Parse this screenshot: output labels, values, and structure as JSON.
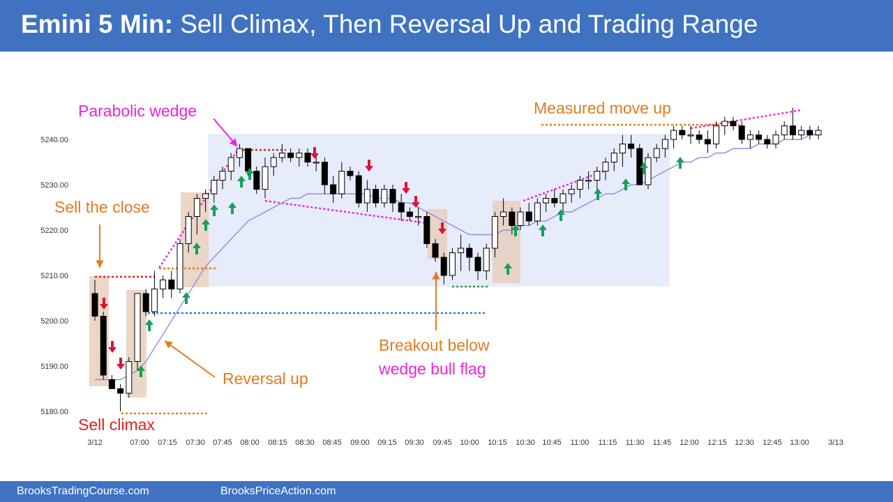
{
  "header": {
    "title_bold": "Emini 5 Min:",
    "title_rest": "Sell Climax, Then Reversal Up and Trading Range"
  },
  "footer": {
    "left": "BrooksTradingCourse.com",
    "right": "BrooksPriceAction.com"
  },
  "colors": {
    "header_bg": "#3f73c2",
    "bull_body": "#ffffff",
    "bear_body": "#000000",
    "ema": "#8a8ee8",
    "range_box": "#dfe6f8",
    "highlight": "#e8cfbd",
    "annotation_orange": "#e07b20",
    "annotation_magenta": "#ee22dd",
    "annotation_red": "#e02020",
    "arrow_up": "#16a05a",
    "arrow_down": "#e0113a"
  },
  "annotations": {
    "parabolic_wedge": "Parabolic wedge",
    "sell_the_close": "Sell the close",
    "sell_climax": "Sell climax",
    "reversal_up": "Reversal up",
    "breakout_line1": "Breakout below",
    "breakout_line2": "wedge bull flag",
    "measured_move": "Measured move up"
  },
  "chart_data": {
    "type": "candlestick",
    "title": "Emini 5 Min: Sell Climax, Then Reversal Up and Trading Range",
    "ylim": [
      5177,
      5252
    ],
    "y_ticks": [
      5180,
      5190,
      5200,
      5210,
      5220,
      5230,
      5240
    ],
    "y_tick_labels": [
      "5180.00",
      "5190.00",
      "5200.00",
      "5210.00",
      "5220.00",
      "5230.00",
      "5240.00"
    ],
    "x_ticks": [
      "3/12",
      "07:00",
      "07:15",
      "07:30",
      "07:45",
      "08:00",
      "08:15",
      "08:30",
      "08:45",
      "09:00",
      "09:15",
      "09:30",
      "09:45",
      "10:00",
      "10:15",
      "10:30",
      "10:45",
      "11:00",
      "11:15",
      "11:30",
      "11:45",
      "12:00",
      "12:15",
      "12:30",
      "12:45",
      "13:00",
      "3/13"
    ],
    "bars": [
      {
        "o": 5206,
        "h": 5209,
        "l": 5200,
        "c": 5201
      },
      {
        "o": 5201,
        "h": 5202,
        "l": 5187,
        "c": 5188
      },
      {
        "o": 5187,
        "h": 5188,
        "l": 5185,
        "c": 5185
      },
      {
        "o": 5185,
        "h": 5186,
        "l": 5180,
        "c": 5184
      },
      {
        "o": 5184,
        "h": 5192,
        "l": 5183,
        "c": 5191
      },
      {
        "o": 5191,
        "h": 5206,
        "l": 5189,
        "c": 5206
      },
      {
        "o": 5206,
        "h": 5207,
        "l": 5201,
        "c": 5202
      },
      {
        "o": 5202,
        "h": 5211,
        "l": 5201,
        "c": 5207
      },
      {
        "o": 5207,
        "h": 5210,
        "l": 5205,
        "c": 5209
      },
      {
        "o": 5209,
        "h": 5211,
        "l": 5205,
        "c": 5207
      },
      {
        "o": 5207,
        "h": 5218,
        "l": 5206,
        "c": 5217
      },
      {
        "o": 5217,
        "h": 5224,
        "l": 5215,
        "c": 5223
      },
      {
        "o": 5223,
        "h": 5228,
        "l": 5219,
        "c": 5227
      },
      {
        "o": 5227,
        "h": 5229,
        "l": 5224,
        "c": 5228
      },
      {
        "o": 5228,
        "h": 5232,
        "l": 5226,
        "c": 5231
      },
      {
        "o": 5231,
        "h": 5234,
        "l": 5229,
        "c": 5233
      },
      {
        "o": 5233,
        "h": 5237,
        "l": 5231,
        "c": 5236
      },
      {
        "o": 5236,
        "h": 5239,
        "l": 5234,
        "c": 5238
      },
      {
        "o": 5238,
        "h": 5238,
        "l": 5232,
        "c": 5233
      },
      {
        "o": 5233,
        "h": 5234,
        "l": 5228,
        "c": 5229
      },
      {
        "o": 5229,
        "h": 5236,
        "l": 5227,
        "c": 5234
      },
      {
        "o": 5234,
        "h": 5237,
        "l": 5232,
        "c": 5236
      },
      {
        "o": 5236,
        "h": 5239,
        "l": 5235,
        "c": 5237
      },
      {
        "o": 5237,
        "h": 5238,
        "l": 5235,
        "c": 5236
      },
      {
        "o": 5236,
        "h": 5238,
        "l": 5234,
        "c": 5237
      },
      {
        "o": 5237,
        "h": 5238,
        "l": 5234,
        "c": 5235
      },
      {
        "o": 5235,
        "h": 5237,
        "l": 5233,
        "c": 5235
      },
      {
        "o": 5235,
        "h": 5236,
        "l": 5228,
        "c": 5230
      },
      {
        "o": 5230,
        "h": 5232,
        "l": 5226,
        "c": 5228
      },
      {
        "o": 5228,
        "h": 5235,
        "l": 5227,
        "c": 5233
      },
      {
        "o": 5233,
        "h": 5234,
        "l": 5231,
        "c": 5232
      },
      {
        "o": 5232,
        "h": 5233,
        "l": 5225,
        "c": 5226
      },
      {
        "o": 5226,
        "h": 5231,
        "l": 5224,
        "c": 5229
      },
      {
        "o": 5229,
        "h": 5230,
        "l": 5225,
        "c": 5226
      },
      {
        "o": 5226,
        "h": 5230,
        "l": 5225,
        "c": 5229
      },
      {
        "o": 5229,
        "h": 5230,
        "l": 5224,
        "c": 5226
      },
      {
        "o": 5226,
        "h": 5228,
        "l": 5222,
        "c": 5224
      },
      {
        "o": 5224,
        "h": 5225,
        "l": 5222,
        "c": 5223
      },
      {
        "o": 5223,
        "h": 5225,
        "l": 5221,
        "c": 5223
      },
      {
        "o": 5223,
        "h": 5224,
        "l": 5216,
        "c": 5217
      },
      {
        "o": 5217,
        "h": 5218,
        "l": 5213,
        "c": 5214
      },
      {
        "o": 5214,
        "h": 5215,
        "l": 5208,
        "c": 5210
      },
      {
        "o": 5210,
        "h": 5216,
        "l": 5209,
        "c": 5215
      },
      {
        "o": 5215,
        "h": 5219,
        "l": 5211,
        "c": 5216
      },
      {
        "o": 5216,
        "h": 5217,
        "l": 5211,
        "c": 5214
      },
      {
        "o": 5214,
        "h": 5215,
        "l": 5209,
        "c": 5211
      },
      {
        "o": 5211,
        "h": 5217,
        "l": 5209,
        "c": 5216
      },
      {
        "o": 5216,
        "h": 5224,
        "l": 5214,
        "c": 5223
      },
      {
        "o": 5223,
        "h": 5227,
        "l": 5221,
        "c": 5224
      },
      {
        "o": 5224,
        "h": 5225,
        "l": 5219,
        "c": 5221
      },
      {
        "o": 5221,
        "h": 5225,
        "l": 5220,
        "c": 5224
      },
      {
        "o": 5224,
        "h": 5226,
        "l": 5221,
        "c": 5222
      },
      {
        "o": 5222,
        "h": 5227,
        "l": 5221,
        "c": 5226
      },
      {
        "o": 5226,
        "h": 5228,
        "l": 5224,
        "c": 5227
      },
      {
        "o": 5227,
        "h": 5229,
        "l": 5225,
        "c": 5226
      },
      {
        "o": 5226,
        "h": 5229,
        "l": 5224,
        "c": 5228
      },
      {
        "o": 5228,
        "h": 5230,
        "l": 5226,
        "c": 5229
      },
      {
        "o": 5229,
        "h": 5232,
        "l": 5227,
        "c": 5231
      },
      {
        "o": 5231,
        "h": 5233,
        "l": 5229,
        "c": 5231
      },
      {
        "o": 5231,
        "h": 5234,
        "l": 5229,
        "c": 5233
      },
      {
        "o": 5233,
        "h": 5236,
        "l": 5231,
        "c": 5235
      },
      {
        "o": 5235,
        "h": 5238,
        "l": 5233,
        "c": 5237
      },
      {
        "o": 5237,
        "h": 5241,
        "l": 5234,
        "c": 5239
      },
      {
        "o": 5239,
        "h": 5241,
        "l": 5236,
        "c": 5238
      },
      {
        "o": 5238,
        "h": 5239,
        "l": 5230,
        "c": 5230
      },
      {
        "o": 5230,
        "h": 5237,
        "l": 5229,
        "c": 5236
      },
      {
        "o": 5236,
        "h": 5239,
        "l": 5235,
        "c": 5238
      },
      {
        "o": 5238,
        "h": 5241,
        "l": 5236,
        "c": 5240
      },
      {
        "o": 5240,
        "h": 5243,
        "l": 5238,
        "c": 5242
      },
      {
        "o": 5242,
        "h": 5243,
        "l": 5240,
        "c": 5241
      },
      {
        "o": 5241,
        "h": 5243,
        "l": 5239,
        "c": 5241
      },
      {
        "o": 5241,
        "h": 5242,
        "l": 5239,
        "c": 5240
      },
      {
        "o": 5240,
        "h": 5242,
        "l": 5237,
        "c": 5239
      },
      {
        "o": 5239,
        "h": 5244,
        "l": 5238,
        "c": 5243
      },
      {
        "o": 5243,
        "h": 5245,
        "l": 5241,
        "c": 5244
      },
      {
        "o": 5244,
        "h": 5245,
        "l": 5242,
        "c": 5243
      },
      {
        "o": 5243,
        "h": 5244,
        "l": 5239,
        "c": 5240
      },
      {
        "o": 5240,
        "h": 5242,
        "l": 5238,
        "c": 5241
      },
      {
        "o": 5241,
        "h": 5242,
        "l": 5239,
        "c": 5240
      },
      {
        "o": 5240,
        "h": 5241,
        "l": 5238,
        "c": 5239
      },
      {
        "o": 5239,
        "h": 5242,
        "l": 5238,
        "c": 5241
      },
      {
        "o": 5241,
        "h": 5244,
        "l": 5240,
        "c": 5243
      },
      {
        "o": 5243,
        "h": 5247,
        "l": 5240,
        "c": 5241
      },
      {
        "o": 5241,
        "h": 5243,
        "l": 5240,
        "c": 5242
      },
      {
        "o": 5242,
        "h": 5243,
        "l": 5240,
        "c": 5241
      },
      {
        "o": 5241,
        "h": 5243,
        "l": 5240,
        "c": 5242
      }
    ],
    "ema20": [
      5187,
      5187,
      5187,
      5187,
      5188,
      5189,
      5191,
      5194,
      5197,
      5200,
      5203,
      5206,
      5209,
      5212,
      5214,
      5216,
      5218,
      5220,
      5222,
      5223,
      5224,
      5225,
      5226,
      5227,
      5227,
      5228,
      5228,
      5228,
      5228,
      5228,
      5228,
      5228,
      5228,
      5227,
      5227,
      5227,
      5226,
      5226,
      5225,
      5224,
      5223,
      5222,
      5221,
      5220,
      5219,
      5219,
      5219,
      5219,
      5220,
      5220,
      5221,
      5221,
      5222,
      5222,
      5223,
      5224,
      5224,
      5225,
      5226,
      5227,
      5228,
      5228,
      5229,
      5230,
      5230,
      5231,
      5232,
      5233,
      5234,
      5235,
      5235,
      5236,
      5236,
      5237,
      5237,
      5238,
      5238,
      5238,
      5239,
      5239,
      5239,
      5240,
      5240,
      5240,
      5241,
      5241
    ]
  }
}
